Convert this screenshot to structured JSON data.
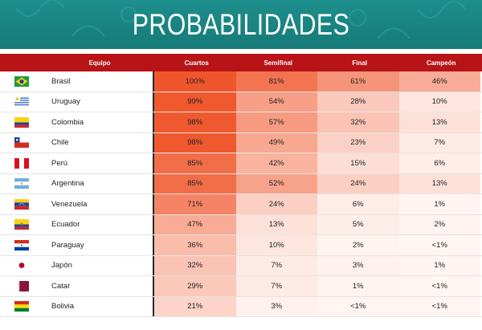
{
  "header": {
    "title": "PROBABILIDADES"
  },
  "table": {
    "columns": {
      "team": "Equipo",
      "c1": "Cuartos",
      "c2": "Semifinal",
      "c3": "Final",
      "c4": "Campeón"
    },
    "rows": [
      {
        "flag": "brazil-flag-icon",
        "team": "Brasil",
        "v": [
          "100%",
          "81%",
          "61%",
          "46%"
        ],
        "p": [
          100,
          81,
          61,
          46
        ]
      },
      {
        "flag": "uruguay-flag-icon",
        "team": "Uruguay",
        "v": [
          "99%",
          "54%",
          "28%",
          "10%"
        ],
        "p": [
          99,
          54,
          28,
          10
        ]
      },
      {
        "flag": "colombia-flag-icon",
        "team": "Colombia",
        "v": [
          "98%",
          "57%",
          "32%",
          "13%"
        ],
        "p": [
          98,
          57,
          32,
          13
        ]
      },
      {
        "flag": "chile-flag-icon",
        "team": "Chile",
        "v": [
          "98%",
          "49%",
          "23%",
          "7%"
        ],
        "p": [
          98,
          49,
          23,
          7
        ]
      },
      {
        "flag": "peru-flag-icon",
        "team": "Perú",
        "v": [
          "85%",
          "42%",
          "15%",
          "6%"
        ],
        "p": [
          85,
          42,
          15,
          6
        ]
      },
      {
        "flag": "argentina-flag-icon",
        "team": "Argentina",
        "v": [
          "85%",
          "52%",
          "24%",
          "13%"
        ],
        "p": [
          85,
          52,
          24,
          13
        ]
      },
      {
        "flag": "venezuela-flag-icon",
        "team": "Venezuela",
        "v": [
          "71%",
          "24%",
          "6%",
          "1%"
        ],
        "p": [
          71,
          24,
          6,
          1
        ]
      },
      {
        "flag": "ecuador-flag-icon",
        "team": "Ecuador",
        "v": [
          "47%",
          "13%",
          "5%",
          "2%"
        ],
        "p": [
          47,
          13,
          5,
          2
        ]
      },
      {
        "flag": "paraguay-flag-icon",
        "team": "Paraguay",
        "v": [
          "36%",
          "10%",
          "2%",
          "<1%"
        ],
        "p": [
          36,
          10,
          2,
          0.5
        ]
      },
      {
        "flag": "japan-flag-icon",
        "team": "Japón",
        "v": [
          "32%",
          "7%",
          "3%",
          "1%"
        ],
        "p": [
          32,
          7,
          3,
          1
        ]
      },
      {
        "flag": "qatar-flag-icon",
        "team": "Catar",
        "v": [
          "29%",
          "7%",
          "1%",
          "<1%"
        ],
        "p": [
          29,
          7,
          1,
          0.5
        ]
      },
      {
        "flag": "bolivia-flag-icon",
        "team": "Bolivia",
        "v": [
          "21%",
          "3%",
          "<1%",
          "<1%"
        ],
        "p": [
          21,
          3,
          0.5,
          0.5
        ]
      }
    ]
  },
  "colors": {
    "banner": "#1d8f8c",
    "header_bar": "#b81417",
    "heat_high": "#f0562b",
    "heat_low": "#fff4f1"
  }
}
